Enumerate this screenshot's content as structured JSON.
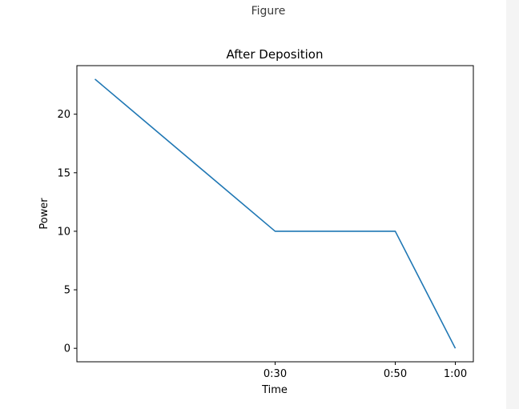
{
  "window": {
    "title": "Figure"
  },
  "chart_data": {
    "type": "line",
    "title": "After Deposition",
    "xlabel": "Time",
    "ylabel": "Power",
    "x": [
      0,
      30,
      50,
      60
    ],
    "values": [
      23,
      10,
      10,
      0
    ],
    "xticks": [
      {
        "value": 30,
        "label": "0:30"
      },
      {
        "value": 50,
        "label": "0:50"
      },
      {
        "value": 60,
        "label": "1:00"
      }
    ],
    "yticks": [
      {
        "value": 0,
        "label": "0"
      },
      {
        "value": 5,
        "label": "5"
      },
      {
        "value": 10,
        "label": "10"
      },
      {
        "value": 15,
        "label": "15"
      },
      {
        "value": 20,
        "label": "20"
      }
    ],
    "xlim": [
      -3,
      63
    ],
    "ylim": [
      -1.15,
      24.15
    ],
    "grid": false,
    "line_color": "#1f77b4"
  }
}
